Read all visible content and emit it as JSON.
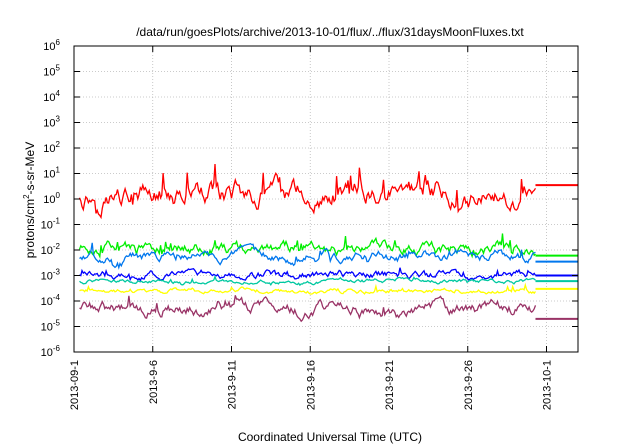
{
  "chart_data": {
    "type": "line",
    "title": "/data/run/goesPlots/archive/2013-10-01/flux/../flux/31daysMoonFluxes.txt",
    "xlabel": "Coordinated Universal Time (UTC)",
    "ylabel": "protons/cm2-s-sr-MeV",
    "ylabel_parts": {
      "pre": "protons/cm",
      "sup": "2",
      "post": "-s-sr-MeV"
    },
    "y_scale": "log",
    "ylim_exponents": [
      -6,
      6
    ],
    "y_tick_base": "10",
    "y_ticks": [
      {
        "exp": "-6"
      },
      {
        "exp": "-5"
      },
      {
        "exp": "-4"
      },
      {
        "exp": "-3"
      },
      {
        "exp": "-2"
      },
      {
        "exp": "-1"
      },
      {
        "exp": "0"
      },
      {
        "exp": "1"
      },
      {
        "exp": "2"
      },
      {
        "exp": "3"
      },
      {
        "exp": "4"
      },
      {
        "exp": "5"
      },
      {
        "exp": "6"
      }
    ],
    "x_ticks": [
      "2013-09-1",
      "2013-9-6",
      "2013-9-11",
      "2013-9-16",
      "2013-9-21",
      "2013-9-26",
      "2013-10-1"
    ],
    "x_tick_days": [
      0,
      5,
      10,
      15,
      20,
      25,
      30
    ],
    "xlim_days": [
      0,
      32
    ],
    "data_end_day": 29.3,
    "grid": true,
    "legend": "none",
    "series": [
      {
        "color": "#ff0000",
        "median": 1.5,
        "spread_decades": 0.55,
        "end_value": 3.5
      },
      {
        "color": "#00ee00",
        "median": 0.012,
        "spread_decades": 0.3,
        "end_value": 0.006
      },
      {
        "color": "#0077ee",
        "median": 0.005,
        "spread_decades": 0.25,
        "end_value": 0.0035
      },
      {
        "color": "#0000ff",
        "median": 0.0011,
        "spread_decades": 0.2,
        "end_value": 0.001
      },
      {
        "color": "#00c8a0",
        "median": 0.0006,
        "spread_decades": 0.1,
        "end_value": 0.0006
      },
      {
        "color": "#ffff00",
        "median": 0.00025,
        "spread_decades": 0.12,
        "end_value": 0.0003
      },
      {
        "color": "#993366",
        "median": 5e-05,
        "spread_decades": 0.3,
        "end_value": 2e-05
      }
    ]
  }
}
